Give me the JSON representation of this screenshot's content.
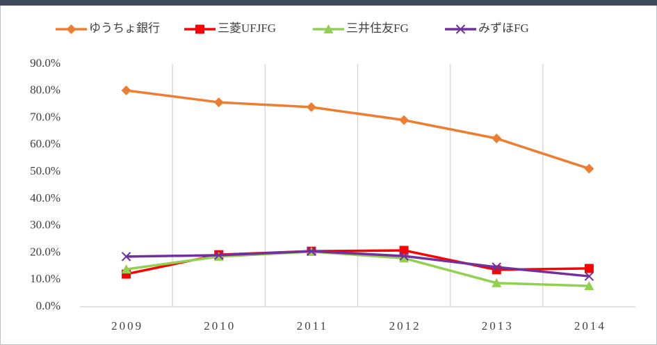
{
  "chart_data": {
    "type": "line",
    "categories": [
      "2009",
      "2010",
      "2011",
      "2012",
      "2013",
      "2014"
    ],
    "series": [
      {
        "name": "ゆうちょ銀行",
        "color": "#ed7d31",
        "marker": "diamond",
        "values": [
          80.2,
          75.8,
          74.0,
          69.2,
          62.4,
          51.2
        ]
      },
      {
        "name": "三菱UFJFG",
        "color": "#ff0000",
        "marker": "square",
        "values": [
          12.1,
          19.3,
          20.6,
          20.9,
          13.7,
          14.2
        ]
      },
      {
        "name": "三井住友FG",
        "color": "#92d050",
        "marker": "triangle",
        "values": [
          13.9,
          18.6,
          20.4,
          18.0,
          8.8,
          7.7
        ]
      },
      {
        "name": "みずほFG",
        "color": "#7030a0",
        "marker": "x",
        "values": [
          18.6,
          19.1,
          20.6,
          18.8,
          14.7,
          11.3
        ]
      }
    ],
    "ylim": [
      0,
      90
    ],
    "yticks": [
      {
        "value": 0,
        "label": "0.0%"
      },
      {
        "value": 10,
        "label": "10.0%"
      },
      {
        "value": 20,
        "label": "20.0%"
      },
      {
        "value": 30,
        "label": "30.0%"
      },
      {
        "value": 40,
        "label": "40.0%"
      },
      {
        "value": 50,
        "label": "50.0%"
      },
      {
        "value": 60,
        "label": "60.0%"
      },
      {
        "value": 70,
        "label": "70.0%"
      },
      {
        "value": 80,
        "label": "80.0%"
      },
      {
        "value": 90,
        "label": "90.0%"
      }
    ],
    "legend": "top"
  }
}
